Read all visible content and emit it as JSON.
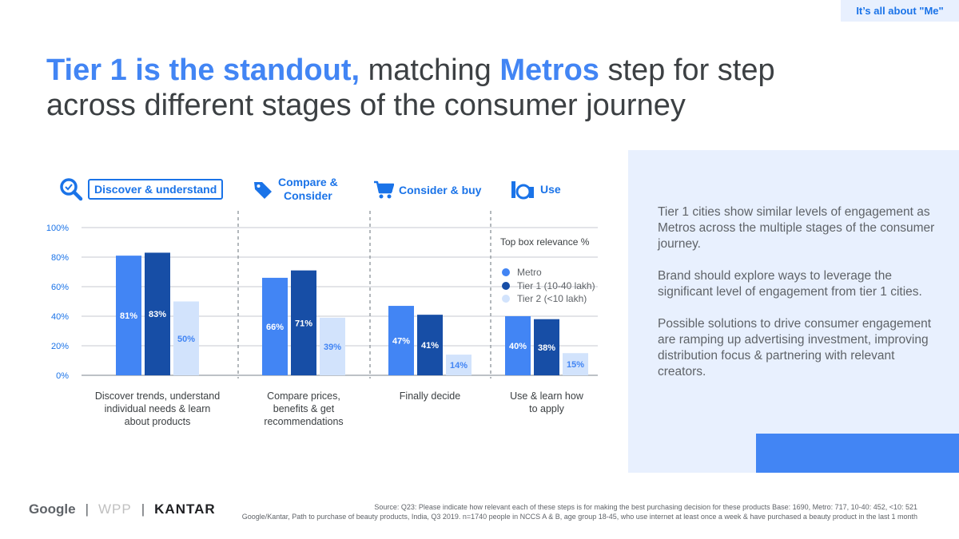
{
  "header": {
    "tag": "It’s all about \"Me\""
  },
  "title": {
    "highlight1": "Tier 1 is the standout,",
    "part1": " matching ",
    "highlight2": "Metros",
    "part2": " step for step",
    "line2": "across different stages of the consumer journey"
  },
  "stages": [
    {
      "label_line1": "Discover & understand",
      "label_line2": "",
      "icon": "search-icon"
    },
    {
      "label_line1": "Compare &",
      "label_line2": "Consider",
      "icon": "price-tag-icon"
    },
    {
      "label_line1": "Consider & buy",
      "label_line2": "",
      "icon": "shopping-cart-icon"
    },
    {
      "label_line1": "Use",
      "label_line2": "",
      "icon": "cosmetics-icon"
    }
  ],
  "legend": {
    "title": "Top box relevance %",
    "items": [
      "Metro",
      "Tier 1 (10-40 lakh)",
      "Tier 2 (<10 lakh)"
    ]
  },
  "colors": {
    "metro": "#4285f4",
    "tier1": "#174ea6",
    "tier2": "#d2e3fc",
    "accent": "#1a73e8"
  },
  "chart_data": {
    "type": "bar",
    "categories": [
      "Discover trends, understand individual needs & learn about products",
      "Compare prices, benefits & get recommendations",
      "Finally decide",
      "Use & learn how to apply"
    ],
    "category_lines": [
      [
        "Discover trends, understand",
        "individual needs & learn",
        "about products"
      ],
      [
        "Compare prices,",
        "benefits & get",
        "recommendations"
      ],
      [
        "Finally decide"
      ],
      [
        "Use & learn how",
        "to apply"
      ]
    ],
    "series": [
      {
        "name": "Metro",
        "values": [
          81,
          66,
          47,
          40
        ],
        "labels": [
          "81%",
          "66%",
          "47%",
          "40%"
        ]
      },
      {
        "name": "Tier 1 (10-40 lakh)",
        "values": [
          83,
          71,
          41,
          38
        ],
        "labels": [
          "83%",
          "71%",
          "41%",
          "38%"
        ]
      },
      {
        "name": "Tier 2 (<10 lakh)",
        "values": [
          50,
          39,
          14,
          15
        ],
        "labels": [
          "50%",
          "39%",
          "14%",
          "15%"
        ]
      }
    ],
    "yticks": [
      "100%",
      "80%",
      "60%",
      "40%",
      "20%",
      "0%"
    ],
    "ylim": [
      0,
      100
    ],
    "grid": true,
    "legend_position": "right"
  },
  "panel": {
    "paragraphs": [
      "Tier 1 cities show similar levels of engagement as Metros across the multiple stages of the consumer journey.",
      "Brand should explore ways to leverage the significant level of engagement from tier 1 cities.",
      "Possible solutions to drive consumer engagement are ramping up advertising investment, improving distribution focus & partnering with relevant creators."
    ]
  },
  "footer": {
    "logos": [
      "Google",
      "WPP",
      "KANTAR"
    ],
    "separator": "|",
    "source_line1": "Source: Q23: Please indicate how relevant each of these steps is for making the best purchasing decision for these products Base: 1690, Metro: 717, 10-40: 452, <10: 521",
    "source_line2": "Google/Kantar, Path to purchase of beauty products, India, Q3 2019. n=1740 people in NCCS A & B, age group 18-45, who use internet at least once a week & have purchased a beauty product in the last 1 month"
  }
}
